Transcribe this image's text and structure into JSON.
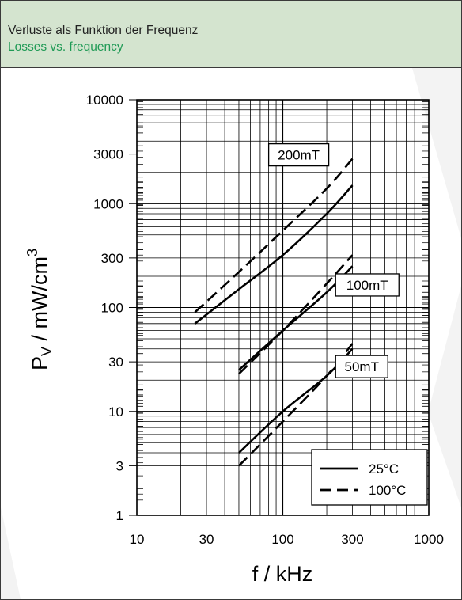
{
  "header": {
    "title_de": "Verluste als Funktion der Frequenz",
    "title_en": "Losses vs. frequency",
    "bg_color": "#d4e4cf",
    "en_color": "#1f9a55"
  },
  "chart_data": {
    "type": "line",
    "title": "Verluste als Funktion der Frequenz / Losses vs. frequency",
    "xlabel": "f / kHz",
    "ylabel_main": "P",
    "ylabel_sub": "V",
    "ylabel_rest": " / mW/cm",
    "ylabel_sup": "3",
    "xscale": "log",
    "yscale": "log",
    "xlim": [
      10,
      1000
    ],
    "ylim": [
      1,
      10000
    ],
    "xticks": [
      10,
      30,
      100,
      300,
      1000
    ],
    "xtick_labels": [
      "10",
      "30",
      "100",
      "300",
      "1000"
    ],
    "yticks": [
      1,
      3,
      10,
      30,
      100,
      300,
      1000,
      3000,
      10000
    ],
    "ytick_labels": [
      "1",
      "3",
      "10",
      "30",
      "100",
      "300",
      "1000",
      "3000",
      "10000"
    ],
    "grid": true,
    "legend": {
      "position": "bottom-right",
      "entries": [
        {
          "label": "25°C",
          "style": "solid"
        },
        {
          "label": "100°C",
          "style": "dashed"
        }
      ]
    },
    "annotations": [
      {
        "text": "200mT",
        "group": "200mT"
      },
      {
        "text": "100mT",
        "group": "100mT"
      },
      {
        "text": "50mT",
        "group": "50mT"
      }
    ],
    "series": [
      {
        "group": "200mT",
        "temp": "25°C",
        "style": "solid",
        "x": [
          25,
          50,
          100,
          200,
          300
        ],
        "y": [
          70,
          150,
          320,
          800,
          1500
        ]
      },
      {
        "group": "200mT",
        "temp": "100°C",
        "style": "dashed",
        "x": [
          25,
          50,
          100,
          200,
          300
        ],
        "y": [
          90,
          220,
          550,
          1400,
          2700
        ]
      },
      {
        "group": "100mT",
        "temp": "25°C",
        "style": "solid",
        "x": [
          50,
          100,
          200,
          300
        ],
        "y": [
          25,
          60,
          140,
          250
        ]
      },
      {
        "group": "100mT",
        "temp": "100°C",
        "style": "dashed",
        "x": [
          50,
          100,
          200,
          300
        ],
        "y": [
          23,
          60,
          170,
          320
        ]
      },
      {
        "group": "50mT",
        "temp": "25°C",
        "style": "solid",
        "x": [
          50,
          100,
          200,
          300
        ],
        "y": [
          4,
          10,
          22,
          40
        ]
      },
      {
        "group": "50mT",
        "temp": "100°C",
        "style": "dashed",
        "x": [
          50,
          100,
          200,
          300
        ],
        "y": [
          3,
          8,
          22,
          45
        ]
      }
    ]
  }
}
